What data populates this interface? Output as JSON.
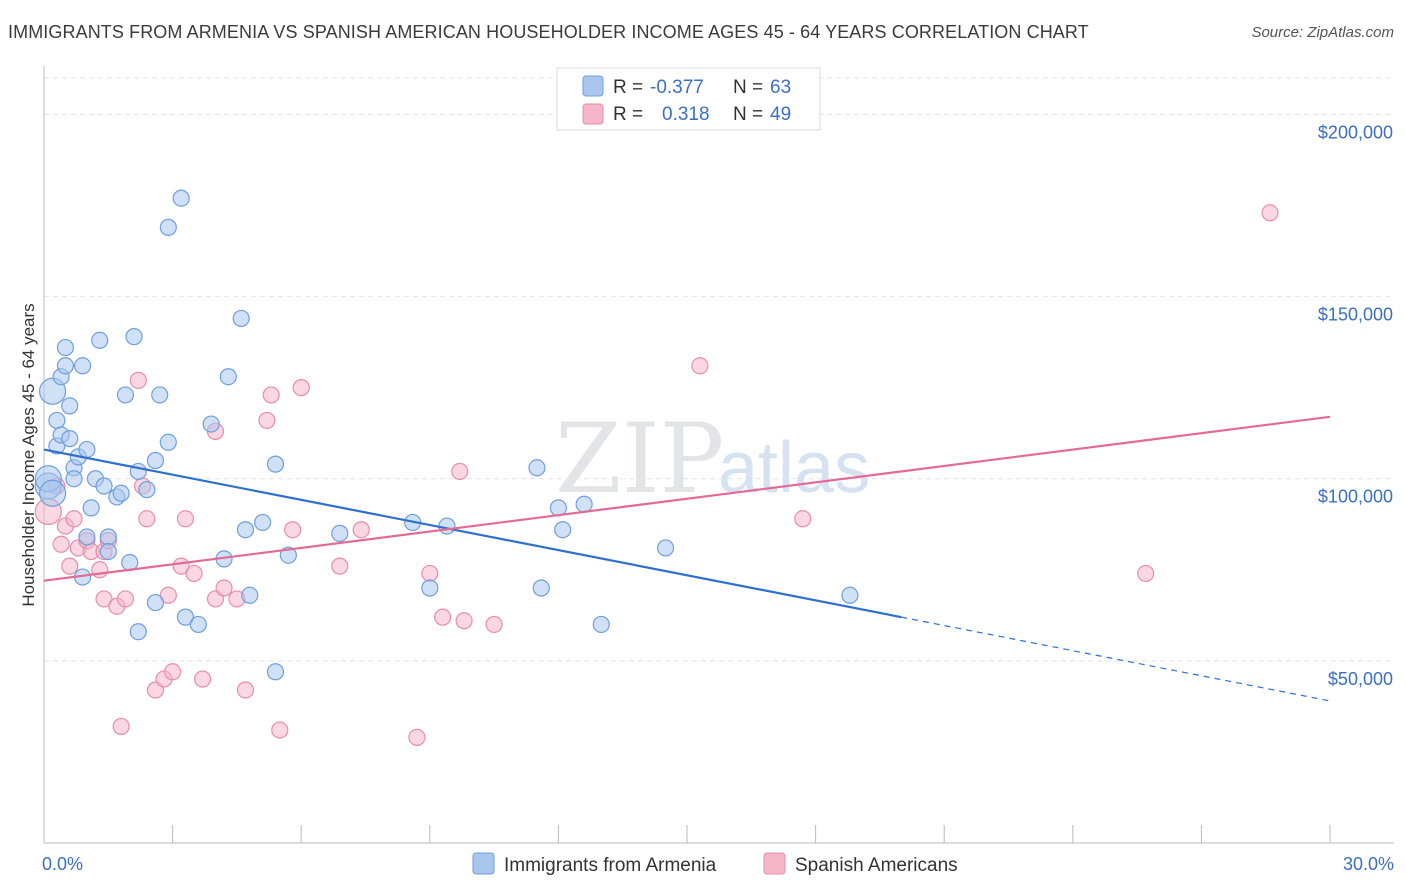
{
  "title": "IMMIGRANTS FROM ARMENIA VS SPANISH AMERICAN HOUSEHOLDER INCOME AGES 45 - 64 YEARS CORRELATION CHART",
  "source": "Source: ZipAtlas.com",
  "watermark": {
    "zip": "ZIP",
    "atlas": "atlas"
  },
  "legend": {
    "rows": [
      {
        "r_label": "R =",
        "r_value": "-0.377",
        "n_label": "N =",
        "n_value": "63",
        "color": "#a9c6ee"
      },
      {
        "r_label": "R =",
        "r_value": "0.318",
        "n_label": "N =",
        "n_value": "49",
        "color": "#f5b6ca"
      }
    ]
  },
  "chart_data": {
    "type": "scatter",
    "title": "IMMIGRANTS FROM ARMENIA VS SPANISH AMERICAN HOUSEHOLDER INCOME AGES 45 - 64 YEARS CORRELATION CHART",
    "xlabel": "",
    "ylabel": "Householder Income Ages 45 - 64 years",
    "xlim": [
      0,
      30
    ],
    "ylim": [
      0,
      210000
    ],
    "x_tick_labels": [
      "0.0%",
      "30.0%"
    ],
    "y_ticks": [
      {
        "value": 50000,
        "label": "$50,000"
      },
      {
        "value": 100000,
        "label": "$100,000"
      },
      {
        "value": 150000,
        "label": "$150,000"
      },
      {
        "value": 200000,
        "label": "$200,000"
      }
    ],
    "grid": true,
    "legend_position": "top-center",
    "series": [
      {
        "name": "Immigrants from Armenia",
        "color": "#a9c6ee",
        "stroke": "#6f9fdc",
        "trend_color": "#2f6fce",
        "trend": {
          "x0": 0.0,
          "y0": 108000,
          "x1": 20.0,
          "y1": 62000,
          "dash_to_x": 30.0,
          "dash_to_y": 39000
        },
        "points": [
          [
            0.2,
            124000
          ],
          [
            0.3,
            116000
          ],
          [
            0.4,
            128000
          ],
          [
            0.3,
            109000
          ],
          [
            0.4,
            112000
          ],
          [
            0.5,
            131000
          ],
          [
            0.5,
            136000
          ],
          [
            0.6,
            120000
          ],
          [
            0.6,
            111000
          ],
          [
            0.7,
            103000
          ],
          [
            0.7,
            100000
          ],
          [
            0.8,
            106000
          ],
          [
            0.9,
            131000
          ],
          [
            0.9,
            73000
          ],
          [
            1.0,
            84000
          ],
          [
            1.0,
            108000
          ],
          [
            1.1,
            92000
          ],
          [
            1.2,
            100000
          ],
          [
            1.3,
            138000
          ],
          [
            1.4,
            98000
          ],
          [
            1.5,
            84000
          ],
          [
            1.5,
            80000
          ],
          [
            1.7,
            95000
          ],
          [
            1.8,
            96000
          ],
          [
            1.9,
            123000
          ],
          [
            2.0,
            77000
          ],
          [
            2.1,
            139000
          ],
          [
            2.2,
            58000
          ],
          [
            2.2,
            102000
          ],
          [
            2.4,
            97000
          ],
          [
            2.6,
            105000
          ],
          [
            2.6,
            66000
          ],
          [
            2.7,
            123000
          ],
          [
            2.9,
            110000
          ],
          [
            2.9,
            169000
          ],
          [
            3.2,
            177000
          ],
          [
            3.3,
            62000
          ],
          [
            3.6,
            60000
          ],
          [
            3.9,
            115000
          ],
          [
            4.2,
            78000
          ],
          [
            4.3,
            128000
          ],
          [
            4.6,
            144000
          ],
          [
            4.7,
            86000
          ],
          [
            4.8,
            68000
          ],
          [
            5.1,
            88000
          ],
          [
            5.4,
            47000
          ],
          [
            5.4,
            104000
          ],
          [
            5.7,
            79000
          ],
          [
            6.9,
            85000
          ],
          [
            8.6,
            88000
          ],
          [
            9.0,
            70000
          ],
          [
            9.4,
            87000
          ],
          [
            11.5,
            103000
          ],
          [
            11.6,
            70000
          ],
          [
            12.0,
            92000
          ],
          [
            12.1,
            86000
          ],
          [
            12.6,
            93000
          ],
          [
            13.0,
            60000
          ],
          [
            14.5,
            81000
          ],
          [
            18.8,
            68000
          ],
          [
            0.1,
            98000
          ],
          [
            0.1,
            100000
          ],
          [
            0.2,
            96000
          ]
        ]
      },
      {
        "name": "Spanish Americans",
        "color": "#f5b6ca",
        "stroke": "#ea8cab",
        "trend_color": "#e46a93",
        "trend": {
          "x0": 0.0,
          "y0": 72000,
          "x1": 30.0,
          "y1": 117000
        },
        "points": [
          [
            0.1,
            91000
          ],
          [
            0.4,
            82000
          ],
          [
            0.5,
            87000
          ],
          [
            0.6,
            76000
          ],
          [
            0.7,
            89000
          ],
          [
            0.8,
            81000
          ],
          [
            1.0,
            83000
          ],
          [
            1.1,
            80000
          ],
          [
            1.3,
            75000
          ],
          [
            1.4,
            80000
          ],
          [
            1.4,
            67000
          ],
          [
            1.5,
            83000
          ],
          [
            1.7,
            65000
          ],
          [
            1.8,
            32000
          ],
          [
            1.9,
            67000
          ],
          [
            2.2,
            127000
          ],
          [
            2.3,
            98000
          ],
          [
            2.4,
            89000
          ],
          [
            2.6,
            42000
          ],
          [
            2.8,
            45000
          ],
          [
            2.9,
            68000
          ],
          [
            3.0,
            47000
          ],
          [
            3.2,
            76000
          ],
          [
            3.3,
            89000
          ],
          [
            3.5,
            74000
          ],
          [
            3.7,
            45000
          ],
          [
            4.0,
            67000
          ],
          [
            4.0,
            113000
          ],
          [
            4.2,
            70000
          ],
          [
            4.5,
            67000
          ],
          [
            4.7,
            42000
          ],
          [
            5.2,
            116000
          ],
          [
            5.3,
            123000
          ],
          [
            5.5,
            31000
          ],
          [
            5.8,
            86000
          ],
          [
            6.0,
            125000
          ],
          [
            6.9,
            76000
          ],
          [
            7.4,
            86000
          ],
          [
            8.7,
            29000
          ],
          [
            9.0,
            74000
          ],
          [
            9.3,
            62000
          ],
          [
            9.7,
            102000
          ],
          [
            9.8,
            61000
          ],
          [
            10.5,
            60000
          ],
          [
            15.3,
            131000
          ],
          [
            17.7,
            89000
          ],
          [
            25.7,
            74000
          ],
          [
            28.6,
            173000
          ],
          [
            0.3,
            98000
          ]
        ]
      }
    ]
  }
}
